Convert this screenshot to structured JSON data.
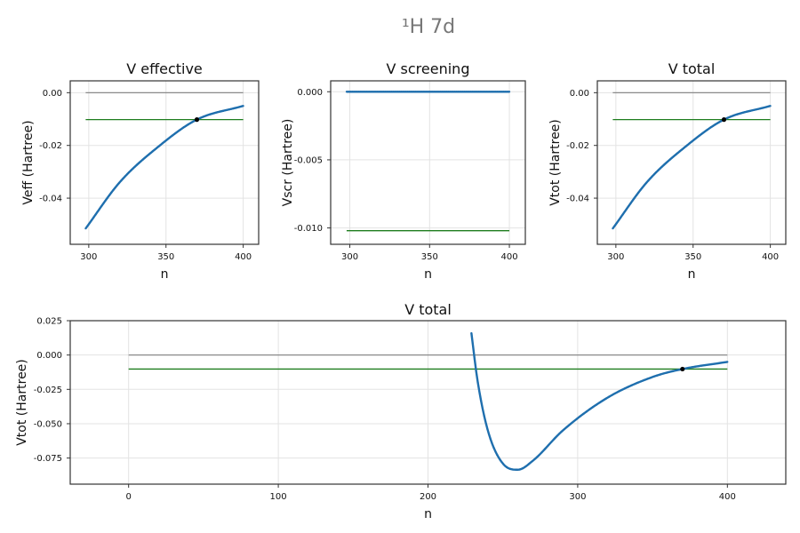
{
  "figure": {
    "title": "¹H 7d",
    "colors": {
      "curve": "#1f6fae",
      "zero_line": "#8a8a8a",
      "energy_line": "#1e7d1e",
      "marker": "#000000",
      "title": "#777777"
    }
  },
  "chart_data": [
    {
      "id": "veff",
      "type": "line",
      "title": "V effective",
      "xlabel": "n",
      "ylabel": "Veff (Hartree)",
      "xlim": [
        288,
        410
      ],
      "ylim": [
        -0.0575,
        0.0045
      ],
      "xticks": [
        300,
        350,
        400
      ],
      "xtick_labels": [
        "300",
        "350",
        "400"
      ],
      "yticks": [
        0.0,
        -0.02,
        -0.04
      ],
      "ytick_labels": [
        "0.00",
        "-0.02",
        "-0.04"
      ],
      "curve": {
        "x_start": 298,
        "x_end": 400,
        "samples": [
          [
            298,
            -0.0515
          ],
          [
            320,
            -0.034
          ],
          [
            345,
            -0.0205
          ],
          [
            370,
            -0.0102
          ],
          [
            400,
            -0.005
          ]
        ]
      },
      "zero_line": {
        "x": [
          298,
          400
        ],
        "y": 0.0
      },
      "energy_line": {
        "x": [
          298,
          400
        ],
        "y": -0.0102
      },
      "marker": {
        "x": 370,
        "y": -0.0102
      },
      "grid": true
    },
    {
      "id": "vscr",
      "type": "line",
      "title": "V screening",
      "xlabel": "n",
      "ylabel": "Vscr (Hartree)",
      "xlim": [
        288,
        410
      ],
      "ylim": [
        -0.0112,
        0.0008
      ],
      "xticks": [
        300,
        350,
        400
      ],
      "xtick_labels": [
        "300",
        "350",
        "400"
      ],
      "yticks": [
        0.0,
        -0.005,
        -0.01
      ],
      "ytick_labels": [
        "0.000",
        "-0.005",
        "-0.010"
      ],
      "curve": {
        "x_start": 298,
        "x_end": 400,
        "samples": [
          [
            298,
            0.0
          ],
          [
            400,
            0.0
          ]
        ]
      },
      "energy_line": {
        "x": [
          298,
          400
        ],
        "y": -0.0102
      },
      "grid": true
    },
    {
      "id": "vtot",
      "type": "line",
      "title": "V total",
      "xlabel": "n",
      "ylabel": "Vtot (Hartree)",
      "xlim": [
        288,
        410
      ],
      "ylim": [
        -0.0575,
        0.0045
      ],
      "xticks": [
        300,
        350,
        400
      ],
      "xtick_labels": [
        "300",
        "350",
        "400"
      ],
      "yticks": [
        0.0,
        -0.02,
        -0.04
      ],
      "ytick_labels": [
        "0.00",
        "-0.02",
        "-0.04"
      ],
      "curve": {
        "x_start": 298,
        "x_end": 400,
        "samples": [
          [
            298,
            -0.0515
          ],
          [
            320,
            -0.034
          ],
          [
            345,
            -0.0205
          ],
          [
            370,
            -0.0102
          ],
          [
            400,
            -0.005
          ]
        ]
      },
      "zero_line": {
        "x": [
          298,
          400
        ],
        "y": 0.0
      },
      "energy_line": {
        "x": [
          298,
          400
        ],
        "y": -0.0102
      },
      "marker": {
        "x": 370,
        "y": -0.0102
      },
      "grid": true
    },
    {
      "id": "vtot-full",
      "type": "line",
      "title": "V total",
      "xlabel": "n",
      "ylabel": "Vtot (Hartree)",
      "xlim": [
        -39,
        439
      ],
      "ylim": [
        -0.094,
        0.025
      ],
      "xticks": [
        0,
        100,
        200,
        300,
        400
      ],
      "xtick_labels": [
        "0",
        "100",
        "200",
        "300",
        "400"
      ],
      "yticks": [
        0.025,
        0.0,
        -0.025,
        -0.05,
        -0.075
      ],
      "ytick_labels": [
        "0.025",
        "0.000",
        "-0.025",
        "-0.050",
        "-0.075"
      ],
      "curve": {
        "x_start": 229,
        "x_end": 400,
        "samples": [
          [
            229,
            0.016
          ],
          [
            233,
            -0.018
          ],
          [
            240,
            -0.055
          ],
          [
            250,
            -0.079
          ],
          [
            260,
            -0.0835
          ],
          [
            270,
            -0.077
          ],
          [
            290,
            -0.055
          ],
          [
            320,
            -0.031
          ],
          [
            350,
            -0.016
          ],
          [
            370,
            -0.0102
          ],
          [
            400,
            -0.005
          ]
        ]
      },
      "zero_line": {
        "x": [
          0,
          400
        ],
        "y": 0.0
      },
      "energy_line": {
        "x": [
          0,
          400
        ],
        "y": -0.0102
      },
      "marker": {
        "x": 370,
        "y": -0.0102
      },
      "grid": true
    }
  ]
}
